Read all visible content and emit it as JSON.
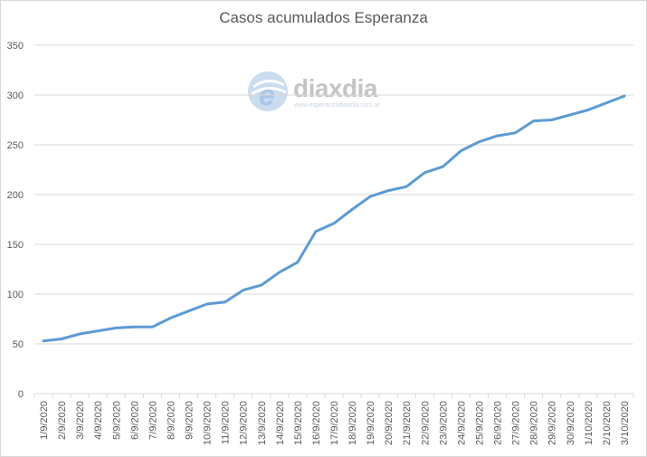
{
  "chart_data": {
    "type": "line",
    "title": "Casos acumulados Esperanza",
    "xlabel": "",
    "ylabel": "",
    "ylim": [
      0,
      350
    ],
    "yticks": [
      0,
      50,
      100,
      150,
      200,
      250,
      300,
      350
    ],
    "grid": true,
    "legend": "none",
    "categories": [
      "1/9/2020",
      "2/9/2020",
      "3/9/2020",
      "4/9/2020",
      "5/9/2020",
      "6/9/2020",
      "7/9/2020",
      "8/9/2020",
      "9/9/2020",
      "10/9/2020",
      "11/9/2020",
      "12/9/2020",
      "13/9/2020",
      "14/9/2020",
      "15/9/2020",
      "16/9/2020",
      "17/9/2020",
      "18/9/2020",
      "19/9/2020",
      "20/9/2020",
      "21/9/2020",
      "22/9/2020",
      "23/9/2020",
      "24/9/2020",
      "25/9/2020",
      "26/9/2020",
      "27/9/2020",
      "28/9/2020",
      "29/9/2020",
      "30/9/2020",
      "1/10/2020",
      "2/10/2020",
      "3/10/2020"
    ],
    "series": [
      {
        "name": "Casos acumulados",
        "color": "#5b9bd5",
        "values": [
          53,
          55,
          60,
          63,
          66,
          67,
          67,
          76,
          83,
          90,
          92,
          104,
          109,
          122,
          132,
          163,
          171,
          185,
          198,
          204,
          208,
          222,
          228,
          244,
          253,
          259,
          262,
          274,
          275,
          280,
          285,
          292,
          299
        ]
      }
    ]
  },
  "watermark": {
    "brand": "diaxdia",
    "url": "www.esperanzadiaxdia.com.ar"
  }
}
